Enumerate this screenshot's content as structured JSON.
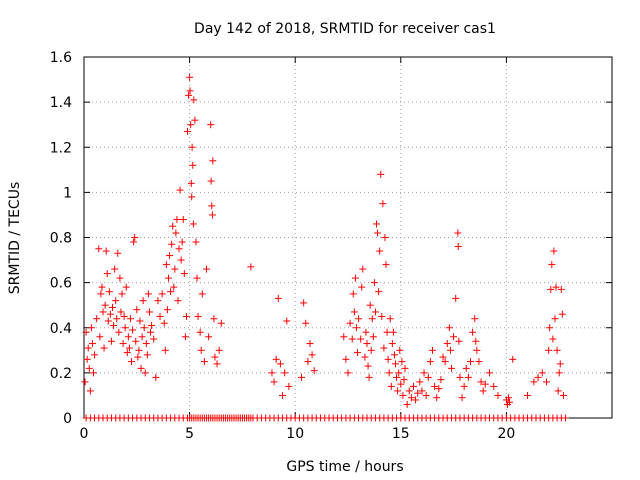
{
  "chart_data": {
    "type": "scatter",
    "title": "Day 142 of 2018, SRMTID for receiver cas1",
    "xlabel": "GPS time / hours",
    "ylabel": "SRMTID / TECUs",
    "xlim": [
      0,
      25
    ],
    "ylim": [
      0,
      1.6
    ],
    "x_ticks": [
      {
        "value": 0,
        "label": "0"
      },
      {
        "value": 5,
        "label": "5"
      },
      {
        "value": 10,
        "label": "10"
      },
      {
        "value": 15,
        "label": "15"
      },
      {
        "value": 20,
        "label": "20"
      }
    ],
    "y_ticks": [
      {
        "value": 0,
        "label": "0"
      },
      {
        "value": 0.2,
        "label": "0.2"
      },
      {
        "value": 0.4,
        "label": "0.4"
      },
      {
        "value": 0.6,
        "label": "0.6"
      },
      {
        "value": 0.8,
        "label": "0.8"
      },
      {
        "value": 1.0,
        "label": "1"
      },
      {
        "value": 1.2,
        "label": "1.2"
      },
      {
        "value": 1.4,
        "label": "1.4"
      },
      {
        "value": 1.6,
        "label": "1.6"
      }
    ],
    "grid": true,
    "marker": "+",
    "series": [
      {
        "name": "SRMTID",
        "color": "#ff0000",
        "points": [
          [
            0.05,
            0.16
          ],
          [
            0.1,
            0.38
          ],
          [
            0.15,
            0.26
          ],
          [
            0.2,
            0.31
          ],
          [
            0.25,
            0.22
          ],
          [
            0.3,
            0.12
          ],
          [
            0.35,
            0.4
          ],
          [
            0.4,
            0.33
          ],
          [
            0.45,
            0.2
          ],
          [
            0.5,
            0.28
          ],
          [
            0.6,
            0.44
          ],
          [
            0.7,
            0.75
          ],
          [
            0.75,
            0.36
          ],
          [
            0.8,
            0.55
          ],
          [
            0.85,
            0.58
          ],
          [
            0.9,
            0.47
          ],
          [
            0.95,
            0.31
          ],
          [
            1.0,
            0.5
          ],
          [
            1.05,
            0.74
          ],
          [
            1.1,
            0.64
          ],
          [
            1.15,
            0.43
          ],
          [
            1.2,
            0.56
          ],
          [
            1.25,
            0.46
          ],
          [
            1.3,
            0.34
          ],
          [
            1.35,
            0.49
          ],
          [
            1.4,
            0.41
          ],
          [
            1.45,
            0.66
          ],
          [
            1.5,
            0.52
          ],
          [
            1.55,
            0.44
          ],
          [
            1.6,
            0.73
          ],
          [
            1.65,
            0.38
          ],
          [
            1.7,
            0.62
          ],
          [
            1.75,
            0.47
          ],
          [
            1.8,
            0.55
          ],
          [
            1.85,
            0.33
          ],
          [
            1.9,
            0.45
          ],
          [
            1.95,
            0.4
          ],
          [
            2.0,
            0.58
          ],
          [
            2.05,
            0.29
          ],
          [
            2.1,
            0.36
          ],
          [
            2.15,
            0.31
          ],
          [
            2.2,
            0.44
          ],
          [
            2.25,
            0.25
          ],
          [
            2.3,
            0.39
          ],
          [
            2.35,
            0.78
          ],
          [
            2.4,
            0.8
          ],
          [
            2.45,
            0.34
          ],
          [
            2.5,
            0.48
          ],
          [
            2.55,
            0.27
          ],
          [
            2.6,
            0.3
          ],
          [
            2.65,
            0.43
          ],
          [
            2.7,
            0.22
          ],
          [
            2.75,
            0.36
          ],
          [
            2.8,
            0.52
          ],
          [
            2.85,
            0.4
          ],
          [
            2.9,
            0.2
          ],
          [
            2.95,
            0.33
          ],
          [
            3.0,
            0.28
          ],
          [
            3.05,
            0.55
          ],
          [
            3.1,
            0.47
          ],
          [
            3.15,
            0.38
          ],
          [
            3.2,
            0.41
          ],
          [
            3.3,
            0.35
          ],
          [
            3.4,
            0.18
          ],
          [
            3.5,
            0.52
          ],
          [
            3.6,
            0.45
          ],
          [
            3.7,
            0.55
          ],
          [
            3.8,
            0.42
          ],
          [
            3.85,
            0.3
          ],
          [
            3.9,
            0.68
          ],
          [
            3.95,
            0.48
          ],
          [
            4.0,
            0.62
          ],
          [
            4.05,
            0.72
          ],
          [
            4.1,
            0.56
          ],
          [
            4.15,
            0.77
          ],
          [
            4.2,
            0.85
          ],
          [
            4.25,
            0.58
          ],
          [
            4.3,
            0.66
          ],
          [
            4.35,
            0.82
          ],
          [
            4.4,
            0.88
          ],
          [
            4.45,
            0.52
          ],
          [
            4.5,
            0.75
          ],
          [
            4.55,
            1.01
          ],
          [
            4.6,
            0.7
          ],
          [
            4.65,
            0.78
          ],
          [
            4.7,
            0.88
          ],
          [
            4.75,
            0.64
          ],
          [
            4.8,
            0.36
          ],
          [
            4.85,
            0.45
          ],
          [
            4.9,
            1.27
          ],
          [
            4.95,
            1.43
          ],
          [
            5.0,
            1.51
          ],
          [
            5.02,
            1.45
          ],
          [
            5.05,
            1.3
          ],
          [
            5.08,
            1.04
          ],
          [
            5.1,
            0.98
          ],
          [
            5.12,
            1.2
          ],
          [
            5.15,
            1.12
          ],
          [
            5.18,
            0.86
          ],
          [
            5.2,
            1.41
          ],
          [
            5.25,
            1.32
          ],
          [
            5.3,
            0.78
          ],
          [
            5.35,
            0.62
          ],
          [
            5.4,
            0.45
          ],
          [
            5.5,
            0.38
          ],
          [
            5.55,
            0.3
          ],
          [
            5.6,
            0.55
          ],
          [
            5.7,
            0.25
          ],
          [
            5.8,
            0.66
          ],
          [
            5.9,
            0.36
          ],
          [
            6.0,
            1.3
          ],
          [
            6.02,
            1.05
          ],
          [
            6.05,
            0.94
          ],
          [
            6.08,
            0.9
          ],
          [
            6.1,
            1.14
          ],
          [
            6.15,
            0.44
          ],
          [
            6.2,
            0.27
          ],
          [
            6.3,
            0.24
          ],
          [
            6.4,
            0.3
          ],
          [
            6.5,
            0.42
          ],
          [
            7.9,
            0.67
          ],
          [
            8.9,
            0.2
          ],
          [
            9.0,
            0.16
          ],
          [
            9.1,
            0.26
          ],
          [
            9.2,
            0.53
          ],
          [
            9.3,
            0.24
          ],
          [
            9.4,
            0.1
          ],
          [
            9.5,
            0.2
          ],
          [
            9.6,
            0.43
          ],
          [
            9.7,
            0.14
          ],
          [
            10.3,
            0.18
          ],
          [
            10.4,
            0.51
          ],
          [
            10.5,
            0.42
          ],
          [
            10.6,
            0.25
          ],
          [
            10.7,
            0.33
          ],
          [
            10.8,
            0.28
          ],
          [
            10.9,
            0.21
          ],
          [
            12.3,
            0.36
          ],
          [
            12.4,
            0.26
          ],
          [
            12.5,
            0.2
          ],
          [
            12.6,
            0.42
          ],
          [
            12.7,
            0.35
          ],
          [
            12.75,
            0.55
          ],
          [
            12.8,
            0.47
          ],
          [
            12.85,
            0.62
          ],
          [
            12.9,
            0.4
          ],
          [
            12.95,
            0.29
          ],
          [
            13.0,
            0.44
          ],
          [
            13.1,
            0.35
          ],
          [
            13.15,
            0.58
          ],
          [
            13.2,
            0.66
          ],
          [
            13.3,
            0.27
          ],
          [
            13.35,
            0.38
          ],
          [
            13.4,
            0.33
          ],
          [
            13.45,
            0.23
          ],
          [
            13.5,
            0.18
          ],
          [
            13.55,
            0.5
          ],
          [
            13.6,
            0.3
          ],
          [
            13.65,
            0.44
          ],
          [
            13.7,
            0.36
          ],
          [
            13.75,
            0.6
          ],
          [
            13.8,
            0.47
          ],
          [
            13.85,
            0.86
          ],
          [
            13.9,
            0.82
          ],
          [
            13.95,
            0.56
          ],
          [
            14.0,
            0.74
          ],
          [
            14.05,
            1.08
          ],
          [
            14.1,
            0.45
          ],
          [
            14.15,
            0.95
          ],
          [
            14.2,
            0.31
          ],
          [
            14.25,
            0.8
          ],
          [
            14.3,
            0.68
          ],
          [
            14.35,
            0.38
          ],
          [
            14.4,
            0.26
          ],
          [
            14.45,
            0.2
          ],
          [
            14.5,
            0.44
          ],
          [
            14.55,
            0.14
          ],
          [
            14.6,
            0.33
          ],
          [
            14.65,
            0.38
          ],
          [
            14.7,
            0.28
          ],
          [
            14.75,
            0.24
          ],
          [
            14.8,
            0.18
          ],
          [
            14.85,
            0.12
          ],
          [
            14.9,
            0.2
          ],
          [
            14.95,
            0.3
          ],
          [
            15.0,
            0.15
          ],
          [
            15.05,
            0.25
          ],
          [
            15.1,
            0.1
          ],
          [
            15.15,
            0.17
          ],
          [
            15.2,
            0.22
          ],
          [
            15.3,
            0.06
          ],
          [
            15.4,
            0.12
          ],
          [
            15.5,
            0.09
          ],
          [
            15.6,
            0.14
          ],
          [
            15.7,
            0.08
          ],
          [
            15.8,
            0.11
          ],
          [
            15.9,
            0.16
          ],
          [
            16.0,
            0.12
          ],
          [
            16.1,
            0.2
          ],
          [
            16.2,
            0.1
          ],
          [
            16.3,
            0.18
          ],
          [
            16.4,
            0.25
          ],
          [
            16.5,
            0.3
          ],
          [
            16.6,
            0.14
          ],
          [
            16.7,
            0.09
          ],
          [
            16.8,
            0.13
          ],
          [
            16.9,
            0.17
          ],
          [
            17.0,
            0.27
          ],
          [
            17.1,
            0.25
          ],
          [
            17.2,
            0.33
          ],
          [
            17.3,
            0.4
          ],
          [
            17.35,
            0.3
          ],
          [
            17.4,
            0.22
          ],
          [
            17.5,
            0.36
          ],
          [
            17.6,
            0.53
          ],
          [
            17.7,
            0.82
          ],
          [
            17.72,
            0.76
          ],
          [
            17.75,
            0.34
          ],
          [
            17.8,
            0.18
          ],
          [
            17.9,
            0.09
          ],
          [
            18.0,
            0.14
          ],
          [
            18.1,
            0.22
          ],
          [
            18.2,
            0.18
          ],
          [
            18.3,
            0.25
          ],
          [
            18.4,
            0.38
          ],
          [
            18.5,
            0.44
          ],
          [
            18.55,
            0.34
          ],
          [
            18.6,
            0.3
          ],
          [
            18.7,
            0.25
          ],
          [
            18.8,
            0.16
          ],
          [
            18.9,
            0.12
          ],
          [
            19.0,
            0.15
          ],
          [
            19.2,
            0.2
          ],
          [
            19.4,
            0.14
          ],
          [
            19.6,
            0.1
          ],
          [
            20.0,
            0.08
          ],
          [
            20.05,
            0.06
          ],
          [
            20.1,
            0.09
          ],
          [
            20.15,
            0.07
          ],
          [
            20.3,
            0.26
          ],
          [
            21.0,
            0.1
          ],
          [
            21.3,
            0.16
          ],
          [
            21.5,
            0.18
          ],
          [
            21.7,
            0.2
          ],
          [
            21.9,
            0.16
          ],
          [
            22.0,
            0.3
          ],
          [
            22.05,
            0.4
          ],
          [
            22.1,
            0.57
          ],
          [
            22.15,
            0.68
          ],
          [
            22.2,
            0.35
          ],
          [
            22.25,
            0.74
          ],
          [
            22.3,
            0.44
          ],
          [
            22.35,
            0.58
          ],
          [
            22.4,
            0.3
          ],
          [
            22.45,
            0.12
          ],
          [
            22.5,
            0.2
          ],
          [
            22.55,
            0.24
          ],
          [
            22.6,
            0.57
          ],
          [
            22.65,
            0.46
          ],
          [
            22.7,
            0.1
          ]
        ],
        "baseline_zero_x": [
          0.1,
          0.3,
          0.5,
          0.7,
          0.9,
          1.1,
          1.3,
          1.5,
          1.7,
          1.9,
          2.1,
          2.3,
          2.5,
          2.7,
          2.9,
          3.1,
          3.3,
          3.5,
          3.7,
          3.9,
          4.1,
          4.3,
          4.5,
          4.7,
          4.9,
          5.0,
          5.1,
          5.2,
          5.3,
          5.4,
          5.5,
          5.6,
          5.7,
          5.8,
          5.9,
          6.0,
          6.1,
          6.2,
          6.3,
          6.4,
          6.5,
          6.6,
          6.7,
          6.8,
          6.9,
          7.0,
          7.1,
          7.2,
          7.3,
          7.4,
          7.5,
          7.6,
          7.7,
          7.8,
          7.9,
          8.0,
          8.2,
          8.4,
          8.6,
          8.8,
          9.0,
          9.2,
          9.4,
          9.6,
          9.8,
          10.0,
          10.2,
          10.4,
          10.6,
          10.8,
          11.0,
          11.2,
          11.4,
          11.6,
          11.8,
          12.0,
          12.2,
          12.4,
          12.6,
          12.8,
          13.0,
          13.2,
          13.4,
          13.6,
          13.8,
          14.0,
          14.2,
          14.4,
          14.6,
          14.8,
          15.0,
          15.2,
          15.4,
          15.6,
          15.8,
          16.0,
          16.2,
          16.4,
          16.6,
          16.8,
          17.0,
          17.2,
          17.4,
          17.6,
          17.8,
          18.0,
          18.2,
          18.4,
          18.6,
          18.8,
          19.0,
          19.2,
          19.4,
          19.6,
          19.8,
          20.0,
          20.2,
          20.4,
          20.6,
          20.8,
          21.0,
          21.2,
          21.4,
          21.6,
          21.8,
          22.0,
          22.2,
          22.4,
          22.6,
          22.8
        ]
      }
    ]
  }
}
